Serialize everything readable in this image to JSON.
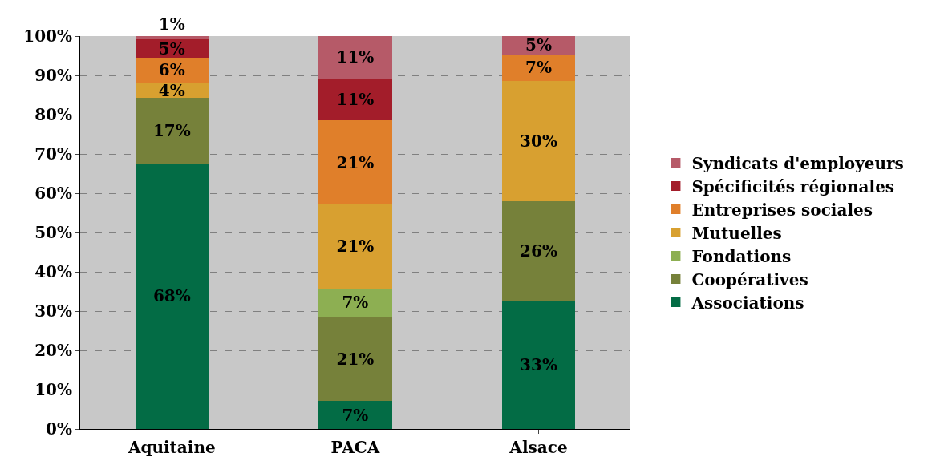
{
  "chart_data": {
    "type": "bar",
    "stacked": true,
    "categories": [
      "Aquitaine",
      "PACA",
      "Alsace"
    ],
    "ylim": [
      0,
      100
    ],
    "yticks": [
      {
        "value": 0,
        "label": "0%"
      },
      {
        "value": 10,
        "label": "10%"
      },
      {
        "value": 20,
        "label": "20%"
      },
      {
        "value": 30,
        "label": "30%"
      },
      {
        "value": 40,
        "label": "40%"
      },
      {
        "value": 50,
        "label": "50%"
      },
      {
        "value": 60,
        "label": "60%"
      },
      {
        "value": 70,
        "label": "70%"
      },
      {
        "value": 80,
        "label": "80%"
      },
      {
        "value": 90,
        "label": "90%"
      },
      {
        "value": 100,
        "label": "100%"
      }
    ],
    "grid": "y",
    "legend": "right",
    "series": [
      {
        "name": "Associations",
        "color": "#036c45",
        "values": [
          67.6,
          7.1,
          32.5
        ],
        "value_labels": [
          "68%",
          "7%",
          "33%"
        ]
      },
      {
        "name": "Coopératives",
        "color": "#76813a",
        "values": [
          16.6,
          21.5,
          25.5
        ],
        "value_labels": [
          "17%",
          "21%",
          "26%"
        ]
      },
      {
        "name": "Fondations",
        "color": "#8daf52",
        "values": [
          null,
          7.1,
          null
        ],
        "value_labels": [
          null,
          "7%",
          null
        ]
      },
      {
        "name": "Mutuelles",
        "color": "#d8a030",
        "values": [
          4.0,
          21.5,
          30.5
        ],
        "value_labels": [
          "4%",
          "21%",
          "30%"
        ]
      },
      {
        "name": "Entreprises sociales",
        "color": "#e07f2a",
        "values": [
          6.3,
          21.3,
          6.9
        ],
        "value_labels": [
          "6%",
          "21%",
          "7%"
        ]
      },
      {
        "name": "Spécificités régionales",
        "color": "#a31d2a",
        "values": [
          4.6,
          10.7,
          null
        ],
        "value_labels": [
          "5%",
          "11%",
          null
        ]
      },
      {
        "name": "Syndicats d'employeurs",
        "color": "#b65a68",
        "values": [
          0.9,
          10.8,
          4.6
        ],
        "value_labels": [
          "1%",
          "11%",
          "5%"
        ]
      }
    ]
  }
}
